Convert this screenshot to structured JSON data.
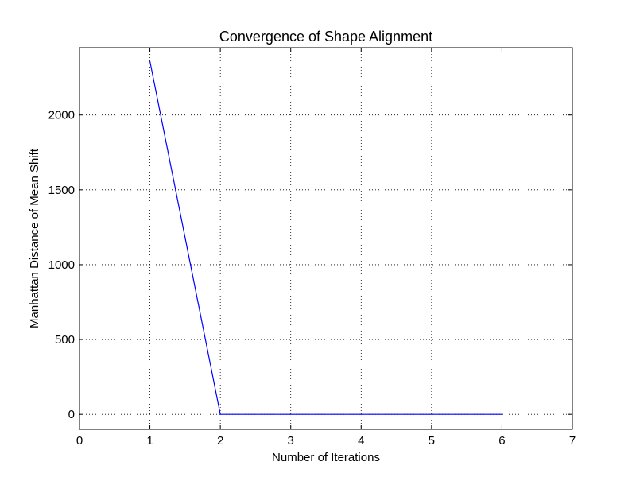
{
  "chart_data": {
    "type": "line",
    "title": "Convergence of Shape Alignment",
    "xlabel": "Number of Iterations",
    "ylabel": "Manhattan Distance of Mean Shift",
    "xlim": [
      0,
      7
    ],
    "ylim": [
      -100,
      2450
    ],
    "xticks": [
      0,
      1,
      2,
      3,
      4,
      5,
      6,
      7
    ],
    "yticks": [
      0,
      500,
      1000,
      1500,
      2000
    ],
    "grid": true,
    "series": [
      {
        "color": "#0000ff",
        "x": [
          1,
          2,
          3,
          4,
          5,
          6
        ],
        "y": [
          2360,
          0,
          0,
          0,
          0,
          0
        ]
      }
    ]
  }
}
